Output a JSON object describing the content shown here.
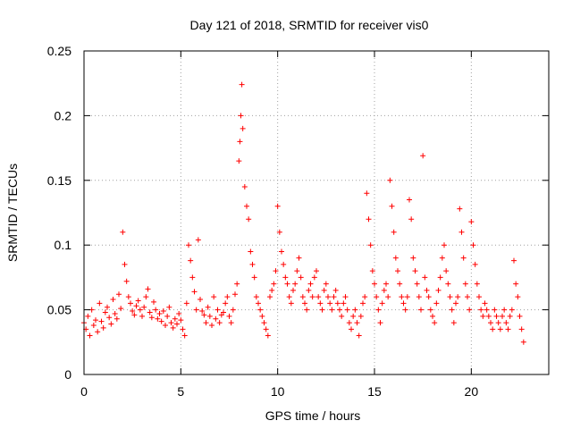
{
  "chart_data": {
    "type": "scatter",
    "title": "Day 121 of 2018, SRMTID for receiver vis0",
    "xlabel": "GPS time / hours",
    "ylabel": "SRMTID / TECUs",
    "xlim": [
      0,
      24
    ],
    "ylim": [
      0,
      0.25
    ],
    "xticks": [
      0,
      5,
      10,
      15,
      20
    ],
    "xtick_labels": [
      "0",
      "5",
      "10",
      "15",
      "20"
    ],
    "yticks": [
      0,
      0.05,
      0.1,
      0.15,
      0.2,
      0.25
    ],
    "ytick_labels": [
      "0",
      "0.05",
      "0.1",
      "0.15",
      "0.2",
      "0.25"
    ],
    "grid": true,
    "marker": "+",
    "color": "#ff0000",
    "series": [
      {
        "name": "SRMTID",
        "points": [
          [
            0.0,
            0.04
          ],
          [
            0.1,
            0.035
          ],
          [
            0.2,
            0.045
          ],
          [
            0.3,
            0.03
          ],
          [
            0.4,
            0.05
          ],
          [
            0.5,
            0.038
          ],
          [
            0.6,
            0.042
          ],
          [
            0.7,
            0.033
          ],
          [
            0.8,
            0.055
          ],
          [
            0.9,
            0.041
          ],
          [
            1.0,
            0.036
          ],
          [
            1.1,
            0.048
          ],
          [
            1.2,
            0.052
          ],
          [
            1.3,
            0.044
          ],
          [
            1.4,
            0.039
          ],
          [
            1.5,
            0.058
          ],
          [
            1.6,
            0.047
          ],
          [
            1.7,
            0.043
          ],
          [
            1.8,
            0.062
          ],
          [
            1.9,
            0.051
          ],
          [
            2.0,
            0.11
          ],
          [
            2.1,
            0.085
          ],
          [
            2.2,
            0.072
          ],
          [
            2.3,
            0.06
          ],
          [
            2.4,
            0.055
          ],
          [
            2.5,
            0.049
          ],
          [
            2.6,
            0.046
          ],
          [
            2.7,
            0.053
          ],
          [
            2.8,
            0.057
          ],
          [
            2.9,
            0.05
          ],
          [
            3.0,
            0.045
          ],
          [
            3.1,
            0.052
          ],
          [
            3.2,
            0.06
          ],
          [
            3.3,
            0.066
          ],
          [
            3.4,
            0.048
          ],
          [
            3.5,
            0.044
          ],
          [
            3.6,
            0.056
          ],
          [
            3.7,
            0.05
          ],
          [
            3.8,
            0.043
          ],
          [
            3.9,
            0.047
          ],
          [
            4.0,
            0.041
          ],
          [
            4.1,
            0.049
          ],
          [
            4.2,
            0.038
          ],
          [
            4.3,
            0.045
          ],
          [
            4.4,
            0.052
          ],
          [
            4.5,
            0.04
          ],
          [
            4.6,
            0.036
          ],
          [
            4.7,
            0.043
          ],
          [
            4.8,
            0.039
          ],
          [
            4.9,
            0.047
          ],
          [
            5.0,
            0.042
          ],
          [
            5.1,
            0.035
          ],
          [
            5.2,
            0.03
          ],
          [
            5.3,
            0.055
          ],
          [
            5.4,
            0.1
          ],
          [
            5.5,
            0.088
          ],
          [
            5.6,
            0.075
          ],
          [
            5.7,
            0.064
          ],
          [
            5.8,
            0.05
          ],
          [
            5.9,
            0.104
          ],
          [
            6.0,
            0.058
          ],
          [
            6.1,
            0.049
          ],
          [
            6.2,
            0.046
          ],
          [
            6.3,
            0.04
          ],
          [
            6.4,
            0.052
          ],
          [
            6.5,
            0.045
          ],
          [
            6.6,
            0.038
          ],
          [
            6.7,
            0.06
          ],
          [
            6.8,
            0.043
          ],
          [
            6.9,
            0.05
          ],
          [
            7.0,
            0.04
          ],
          [
            7.1,
            0.046
          ],
          [
            7.2,
            0.048
          ],
          [
            7.3,
            0.055
          ],
          [
            7.4,
            0.06
          ],
          [
            7.5,
            0.045
          ],
          [
            7.6,
            0.04
          ],
          [
            7.7,
            0.05
          ],
          [
            7.8,
            0.062
          ],
          [
            7.9,
            0.07
          ],
          [
            8.0,
            0.165
          ],
          [
            8.05,
            0.18
          ],
          [
            8.1,
            0.2
          ],
          [
            8.15,
            0.224
          ],
          [
            8.2,
            0.19
          ],
          [
            8.3,
            0.145
          ],
          [
            8.4,
            0.13
          ],
          [
            8.5,
            0.12
          ],
          [
            8.6,
            0.095
          ],
          [
            8.7,
            0.085
          ],
          [
            8.8,
            0.075
          ],
          [
            8.9,
            0.06
          ],
          [
            9.0,
            0.055
          ],
          [
            9.1,
            0.05
          ],
          [
            9.2,
            0.045
          ],
          [
            9.3,
            0.04
          ],
          [
            9.4,
            0.035
          ],
          [
            9.5,
            0.03
          ],
          [
            9.6,
            0.06
          ],
          [
            9.7,
            0.065
          ],
          [
            9.8,
            0.07
          ],
          [
            9.9,
            0.08
          ],
          [
            10.0,
            0.13
          ],
          [
            10.1,
            0.11
          ],
          [
            10.2,
            0.095
          ],
          [
            10.3,
            0.085
          ],
          [
            10.4,
            0.075
          ],
          [
            10.5,
            0.07
          ],
          [
            10.6,
            0.06
          ],
          [
            10.7,
            0.055
          ],
          [
            10.8,
            0.065
          ],
          [
            10.9,
            0.07
          ],
          [
            11.0,
            0.08
          ],
          [
            11.1,
            0.09
          ],
          [
            11.2,
            0.075
          ],
          [
            11.3,
            0.06
          ],
          [
            11.4,
            0.055
          ],
          [
            11.5,
            0.05
          ],
          [
            11.6,
            0.065
          ],
          [
            11.7,
            0.07
          ],
          [
            11.8,
            0.06
          ],
          [
            11.9,
            0.075
          ],
          [
            12.0,
            0.08
          ],
          [
            12.1,
            0.06
          ],
          [
            12.2,
            0.055
          ],
          [
            12.3,
            0.05
          ],
          [
            12.4,
            0.065
          ],
          [
            12.5,
            0.07
          ],
          [
            12.6,
            0.06
          ],
          [
            12.7,
            0.055
          ],
          [
            12.8,
            0.05
          ],
          [
            12.9,
            0.06
          ],
          [
            13.0,
            0.065
          ],
          [
            13.1,
            0.055
          ],
          [
            13.2,
            0.05
          ],
          [
            13.3,
            0.045
          ],
          [
            13.4,
            0.055
          ],
          [
            13.5,
            0.06
          ],
          [
            13.6,
            0.05
          ],
          [
            13.7,
            0.04
          ],
          [
            13.8,
            0.035
          ],
          [
            13.9,
            0.045
          ],
          [
            14.0,
            0.05
          ],
          [
            14.1,
            0.04
          ],
          [
            14.2,
            0.03
          ],
          [
            14.3,
            0.045
          ],
          [
            14.4,
            0.055
          ],
          [
            14.5,
            0.06
          ],
          [
            14.6,
            0.14
          ],
          [
            14.7,
            0.12
          ],
          [
            14.8,
            0.1
          ],
          [
            14.9,
            0.08
          ],
          [
            15.0,
            0.07
          ],
          [
            15.1,
            0.06
          ],
          [
            15.2,
            0.05
          ],
          [
            15.3,
            0.04
          ],
          [
            15.4,
            0.055
          ],
          [
            15.5,
            0.065
          ],
          [
            15.6,
            0.07
          ],
          [
            15.7,
            0.06
          ],
          [
            15.8,
            0.15
          ],
          [
            15.9,
            0.13
          ],
          [
            16.0,
            0.11
          ],
          [
            16.1,
            0.09
          ],
          [
            16.2,
            0.08
          ],
          [
            16.3,
            0.07
          ],
          [
            16.4,
            0.06
          ],
          [
            16.5,
            0.055
          ],
          [
            16.6,
            0.05
          ],
          [
            16.7,
            0.06
          ],
          [
            16.8,
            0.135
          ],
          [
            16.9,
            0.12
          ],
          [
            17.0,
            0.09
          ],
          [
            17.1,
            0.08
          ],
          [
            17.2,
            0.07
          ],
          [
            17.3,
            0.06
          ],
          [
            17.4,
            0.05
          ],
          [
            17.5,
            0.169
          ],
          [
            17.6,
            0.075
          ],
          [
            17.7,
            0.065
          ],
          [
            17.8,
            0.06
          ],
          [
            17.9,
            0.05
          ],
          [
            18.0,
            0.045
          ],
          [
            18.1,
            0.04
          ],
          [
            18.2,
            0.055
          ],
          [
            18.3,
            0.065
          ],
          [
            18.4,
            0.075
          ],
          [
            18.5,
            0.09
          ],
          [
            18.6,
            0.1
          ],
          [
            18.7,
            0.08
          ],
          [
            18.8,
            0.07
          ],
          [
            18.9,
            0.06
          ],
          [
            19.0,
            0.05
          ],
          [
            19.1,
            0.04
          ],
          [
            19.2,
            0.055
          ],
          [
            19.3,
            0.06
          ],
          [
            19.4,
            0.128
          ],
          [
            19.5,
            0.11
          ],
          [
            19.6,
            0.09
          ],
          [
            19.7,
            0.07
          ],
          [
            19.8,
            0.06
          ],
          [
            19.9,
            0.05
          ],
          [
            20.0,
            0.118
          ],
          [
            20.1,
            0.1
          ],
          [
            20.2,
            0.085
          ],
          [
            20.3,
            0.07
          ],
          [
            20.4,
            0.06
          ],
          [
            20.5,
            0.05
          ],
          [
            20.6,
            0.045
          ],
          [
            20.7,
            0.055
          ],
          [
            20.8,
            0.05
          ],
          [
            20.9,
            0.045
          ],
          [
            21.0,
            0.04
          ],
          [
            21.1,
            0.035
          ],
          [
            21.2,
            0.05
          ],
          [
            21.3,
            0.045
          ],
          [
            21.4,
            0.04
          ],
          [
            21.5,
            0.035
          ],
          [
            21.6,
            0.045
          ],
          [
            21.7,
            0.05
          ],
          [
            21.8,
            0.04
          ],
          [
            21.9,
            0.035
          ],
          [
            22.0,
            0.045
          ],
          [
            22.1,
            0.05
          ],
          [
            22.2,
            0.088
          ],
          [
            22.3,
            0.07
          ],
          [
            22.4,
            0.06
          ],
          [
            22.5,
            0.045
          ],
          [
            22.6,
            0.035
          ],
          [
            22.7,
            0.025
          ]
        ]
      }
    ]
  }
}
